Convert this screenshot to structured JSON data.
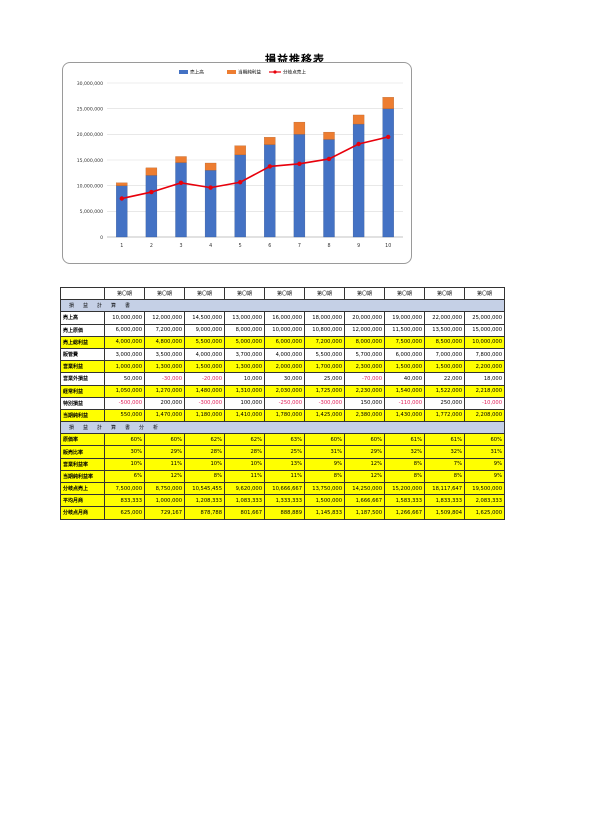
{
  "title": "損益推移表",
  "colors": {
    "sales": "#4472c4",
    "net_profit": "#ed7d31",
    "breakeven": "#e8000b",
    "section": "#c5d0e6",
    "highlight": "#ffff00",
    "negative": "#e0205a"
  },
  "chart_data": {
    "type": "bar",
    "stacked": true,
    "categories": [
      "1",
      "2",
      "3",
      "4",
      "5",
      "6",
      "7",
      "8",
      "9",
      "10"
    ],
    "series": [
      {
        "name": "売上高",
        "kind": "bar",
        "values": [
          10000000,
          12000000,
          14500000,
          13000000,
          16000000,
          18000000,
          20000000,
          19000000,
          22000000,
          25000000
        ]
      },
      {
        "name": "当期純利益",
        "kind": "bar",
        "values": [
          550000,
          1470000,
          1180000,
          1410000,
          1780000,
          1425000,
          2380000,
          1430000,
          1772000,
          2208000
        ]
      },
      {
        "name": "分岐点売上",
        "kind": "line",
        "values": [
          7500000,
          8750000,
          10545455,
          9620000,
          10666667,
          13750000,
          14250000,
          15200000,
          18117647,
          19500000
        ]
      }
    ],
    "yticks": [
      "30,000,000",
      "25,000,000",
      "20,000,000",
      "15,000,000",
      "10,000,000",
      "5,000,000",
      "0"
    ],
    "ylim": [
      0,
      30000000
    ],
    "legend": "top",
    "grid": true
  },
  "table": {
    "period_header": [
      "第〇期",
      "第〇期",
      "第〇期",
      "第〇期",
      "第〇期",
      "第〇期",
      "第〇期",
      "第〇期",
      "第〇期",
      "第〇期"
    ],
    "section1": "損　益　計　算　書",
    "section2": "損　益　計　算　書　分　析",
    "rows1": [
      {
        "label": "売上高",
        "hl": false,
        "values": [
          "10,000,000",
          "12,000,000",
          "14,500,000",
          "13,000,000",
          "16,000,000",
          "18,000,000",
          "20,000,000",
          "19,000,000",
          "22,000,000",
          "25,000,000"
        ]
      },
      {
        "label": "売上原価",
        "hl": false,
        "values": [
          "6,000,000",
          "7,200,000",
          "9,000,000",
          "8,000,000",
          "10,000,000",
          "10,800,000",
          "12,000,000",
          "11,500,000",
          "13,500,000",
          "15,000,000"
        ]
      },
      {
        "label": "売上総利益",
        "hl": true,
        "values": [
          "4,000,000",
          "4,800,000",
          "5,500,000",
          "5,000,000",
          "6,000,000",
          "7,200,000",
          "8,000,000",
          "7,500,000",
          "8,500,000",
          "10,000,000"
        ]
      },
      {
        "label": "販管費",
        "hl": false,
        "values": [
          "3,000,000",
          "3,500,000",
          "4,000,000",
          "3,700,000",
          "4,000,000",
          "5,500,000",
          "5,700,000",
          "6,000,000",
          "7,000,000",
          "7,800,000"
        ]
      },
      {
        "label": "営業利益",
        "hl": true,
        "values": [
          "1,000,000",
          "1,300,000",
          "1,500,000",
          "1,300,000",
          "2,000,000",
          "1,700,000",
          "2,300,000",
          "1,500,000",
          "1,500,000",
          "2,200,000"
        ]
      },
      {
        "label": "営業外損益",
        "hl": false,
        "values": [
          "50,000",
          "-30,000",
          "-20,000",
          "10,000",
          "30,000",
          "25,000",
          "-70,000",
          "40,000",
          "22,000",
          "18,000"
        ]
      },
      {
        "label": "経常利益",
        "hl": true,
        "values": [
          "1,050,000",
          "1,270,000",
          "1,480,000",
          "1,310,000",
          "2,030,000",
          "1,725,000",
          "2,230,000",
          "1,540,000",
          "1,522,000",
          "2,218,000"
        ]
      },
      {
        "label": "特別損益",
        "hl": false,
        "values": [
          "-500,000",
          "200,000",
          "-300,000",
          "100,000",
          "-250,000",
          "-300,000",
          "150,000",
          "-110,000",
          "250,000",
          "-10,000"
        ]
      },
      {
        "label": "当期純利益",
        "hl": true,
        "values": [
          "550,000",
          "1,470,000",
          "1,180,000",
          "1,410,000",
          "1,780,000",
          "1,425,000",
          "2,380,000",
          "1,430,000",
          "1,772,000",
          "2,208,000"
        ]
      }
    ],
    "rows2": [
      {
        "label": "原価率",
        "hl": true,
        "values": [
          "60%",
          "60%",
          "62%",
          "62%",
          "63%",
          "60%",
          "60%",
          "61%",
          "61%",
          "60%"
        ]
      },
      {
        "label": "販売比率",
        "hl": true,
        "values": [
          "30%",
          "29%",
          "28%",
          "28%",
          "25%",
          "31%",
          "29%",
          "32%",
          "32%",
          "31%"
        ]
      },
      {
        "label": "営業利益率",
        "hl": true,
        "values": [
          "10%",
          "11%",
          "10%",
          "10%",
          "13%",
          "9%",
          "12%",
          "8%",
          "7%",
          "9%"
        ]
      },
      {
        "label": "当期純利益率",
        "hl": true,
        "values": [
          "6%",
          "12%",
          "8%",
          "11%",
          "11%",
          "8%",
          "12%",
          "8%",
          "8%",
          "9%"
        ]
      },
      {
        "label": "分岐点売上",
        "hl": true,
        "values": [
          "7,500,000",
          "8,750,000",
          "10,545,455",
          "9,620,000",
          "10,666,667",
          "13,750,000",
          "14,250,000",
          "15,200,000",
          "18,117,647",
          "19,500,000"
        ]
      },
      {
        "label": "平均月商",
        "hl": true,
        "values": [
          "833,333",
          "1,000,000",
          "1,208,333",
          "1,083,333",
          "1,333,333",
          "1,500,000",
          "1,666,667",
          "1,583,333",
          "1,833,333",
          "2,083,333"
        ]
      },
      {
        "label": "分岐点月商",
        "hl": true,
        "values": [
          "625,000",
          "729,167",
          "878,788",
          "801,667",
          "888,889",
          "1,145,833",
          "1,187,500",
          "1,266,667",
          "1,509,804",
          "1,625,000"
        ]
      }
    ]
  }
}
